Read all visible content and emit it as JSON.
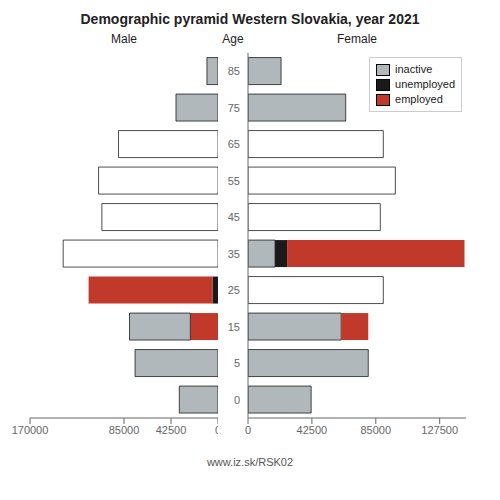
{
  "chart_data": [
    {
      "type": "bar",
      "orientation": "horizontal",
      "stacked": true,
      "title": "Demographic pyramid Western Slovakia, year 2021",
      "subtitle": "Male",
      "annotations": [
        "www.iz.sk/RSK02"
      ],
      "categories": [
        "0",
        "5",
        "15",
        "25",
        "35",
        "45",
        "55",
        "65",
        "75",
        "85"
      ],
      "series": [
        {
          "name": "unemployed",
          "color": "#1a1a1a",
          "values": [
            0,
            0,
            0,
            5000,
            0,
            0,
            0,
            0,
            0,
            0
          ]
        },
        {
          "name": "employed",
          "color": "#c0392b",
          "values": [
            0,
            0,
            25000,
            112000,
            0,
            0,
            0,
            0,
            0,
            0
          ]
        },
        {
          "name": "inactive",
          "color": "#b0b8bc",
          "colors": [
            "#b0b8bc",
            "#b0b8bc",
            "#b0b8bc",
            "#b0b8bc",
            "white",
            "white",
            "white",
            "white",
            "#b0b8bc",
            "#b0b8bc"
          ],
          "values": [
            35000,
            75000,
            55000,
            0,
            140000,
            105000,
            108000,
            90000,
            38000,
            10000
          ]
        }
      ],
      "xlim": [
        170000,
        0
      ],
      "xticks": [
        170000,
        85000,
        42500,
        0
      ],
      "grid": false,
      "tick_labels": "x"
    },
    {
      "type": "bar",
      "orientation": "horizontal",
      "stacked": true,
      "subtitle": "Female",
      "ylabel": "Age",
      "categories": [
        "0",
        "5",
        "15",
        "25",
        "35",
        "45",
        "55",
        "65",
        "75",
        "85"
      ],
      "series": [
        {
          "name": "inactive",
          "color": "#b0b8bc",
          "colors": [
            "#b0b8bc",
            "#b0b8bc",
            "#b0b8bc",
            "white",
            "#b0b8bc",
            "white",
            "white",
            "white",
            "#b0b8bc",
            "#b0b8bc"
          ],
          "values": [
            42000,
            80000,
            62000,
            90000,
            18000,
            88000,
            98000,
            90000,
            65000,
            22000
          ]
        },
        {
          "name": "unemployed",
          "color": "#1a1a1a",
          "values": [
            0,
            0,
            0,
            0,
            8000,
            0,
            0,
            0,
            0,
            0
          ]
        },
        {
          "name": "employed",
          "color": "#c0392b",
          "values": [
            0,
            0,
            18000,
            0,
            118000,
            0,
            0,
            0,
            0,
            0
          ]
        }
      ],
      "xlim": [
        0,
        145000
      ],
      "xticks": [
        0,
        42500,
        85000,
        127500
      ],
      "grid": false,
      "legend": "upper right"
    }
  ]
}
